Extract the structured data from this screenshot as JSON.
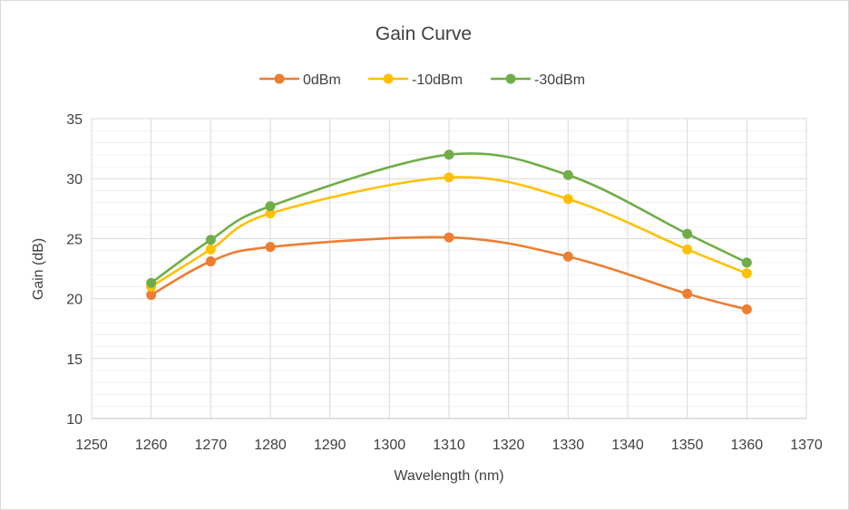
{
  "chart_data": {
    "type": "line",
    "title": "Gain Curve",
    "xlabel": "Wavelength (nm)",
    "ylabel": "Gain (dB)",
    "xlim": [
      1250,
      1370
    ],
    "ylim": [
      10,
      35
    ],
    "xticks": [
      1250,
      1260,
      1270,
      1280,
      1290,
      1300,
      1310,
      1320,
      1330,
      1340,
      1350,
      1360,
      1370
    ],
    "yticks": [
      10,
      15,
      20,
      25,
      30,
      35
    ],
    "grid": true,
    "minor_grid": true,
    "smoothed": true,
    "legend": "top",
    "x": [
      1260,
      1270,
      1280,
      1310,
      1330,
      1350,
      1360
    ],
    "series": [
      {
        "name": "0dBm",
        "color": "#ED7D31",
        "values": [
          20.3,
          23.1,
          24.3,
          25.1,
          23.5,
          20.4,
          19.1
        ]
      },
      {
        "name": "-10dBm",
        "color": "#FFC000",
        "values": [
          21.0,
          24.1,
          27.1,
          30.1,
          28.3,
          24.1,
          22.1
        ]
      },
      {
        "name": "-30dBm",
        "color": "#70AD47",
        "values": [
          21.3,
          24.9,
          27.7,
          32.0,
          30.3,
          25.4,
          23.0
        ]
      }
    ]
  }
}
